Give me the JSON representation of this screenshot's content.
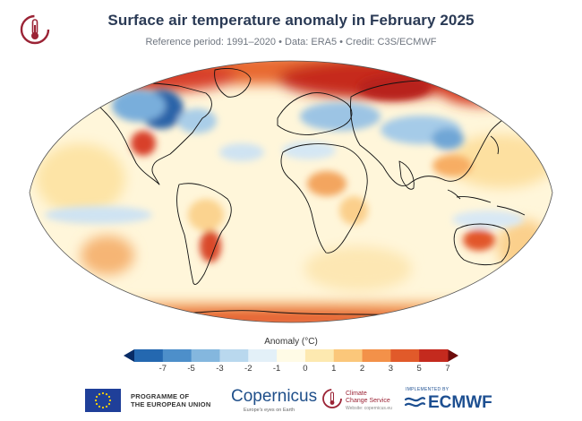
{
  "header": {
    "title": "Surface air temperature anomaly in February 2025",
    "subtitle": "Reference period: 1991–2020 • Data: ERA5 • Credit: C3S/ECMWF"
  },
  "legend": {
    "title": "Anomaly (°C)",
    "ticks": [
      "-7",
      "-5",
      "-3",
      "-2",
      "-1",
      "0",
      "1",
      "2",
      "3",
      "5",
      "7"
    ],
    "colors": [
      "#0c3a82",
      "#2468b0",
      "#4d8fca",
      "#84b7de",
      "#b9d8ee",
      "#e3f0f8",
      "#fffbe6",
      "#fde9b0",
      "#fbc77a",
      "#f39149",
      "#e15a2a",
      "#c42a1e",
      "#8f1313"
    ]
  },
  "footer": {
    "eu_line1": "PROGRAMME OF",
    "eu_line2": "THE EUROPEAN UNION",
    "copernicus": "Copernicus",
    "copernicus_sub": "Europe's eyes on Earth",
    "c3s_line1": "Climate",
    "c3s_line2": "Change Service",
    "c3s_sub": "Website: copernicus.eu",
    "ecmwf_small": "IMPLEMENTED BY",
    "ecmwf": "ECMWF"
  }
}
